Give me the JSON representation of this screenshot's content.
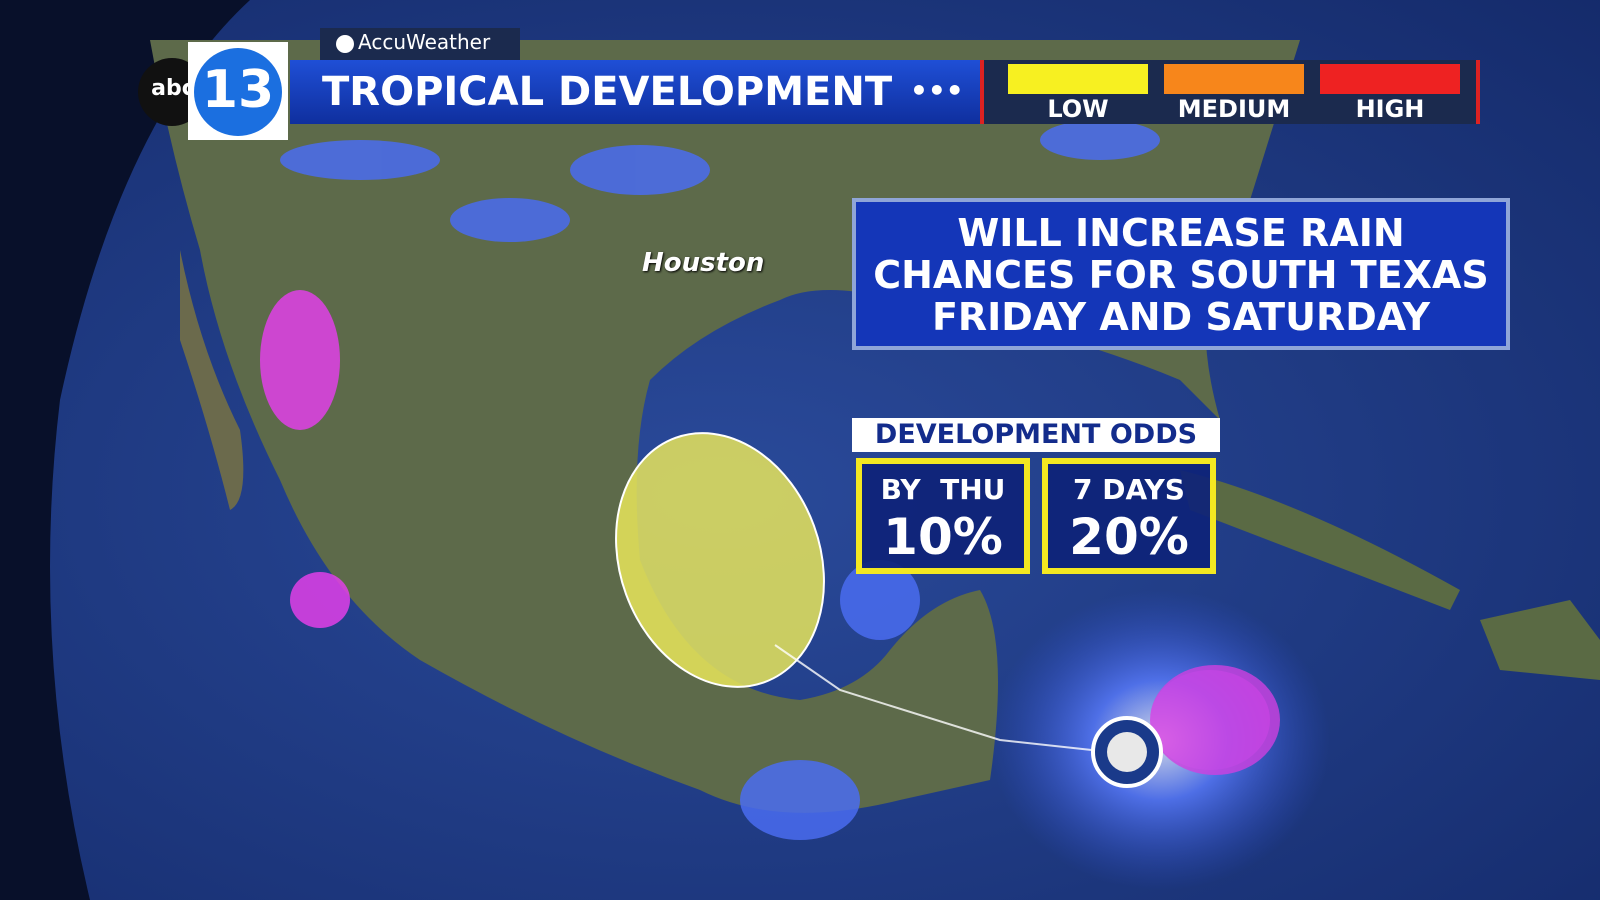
{
  "branding": {
    "network": "abc",
    "channel": "13",
    "source": "AccuWeather"
  },
  "header": {
    "title": "TROPICAL DEVELOPMENT",
    "legend": [
      "LOW",
      "MEDIUM",
      "HIGH"
    ]
  },
  "map": {
    "city": "Houston"
  },
  "message": {
    "lines": [
      "WILL INCREASE RAIN",
      "CHANCES FOR SOUTH TEXAS",
      "FRIDAY AND SATURDAY"
    ]
  },
  "odds": {
    "title": "DEVELOPMENT ODDS",
    "items": [
      {
        "label": "BY  THU",
        "value": "10%"
      },
      {
        "label": "7 DAYS",
        "value": "20%"
      }
    ]
  }
}
